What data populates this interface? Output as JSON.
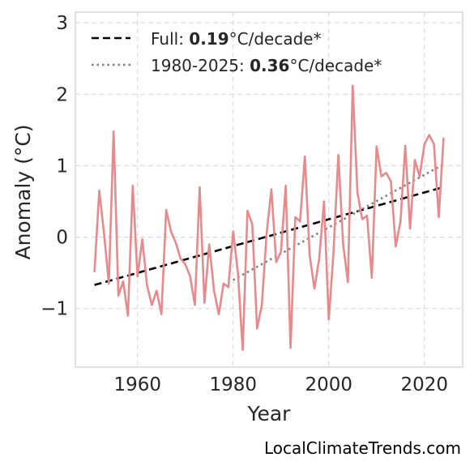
{
  "chart_data": {
    "type": "line",
    "xlabel": "Year",
    "ylabel": "Anomaly (°C)",
    "xlim": [
      1947,
      2028
    ],
    "ylim": [
      -1.82,
      3.15
    ],
    "xticks": [
      1960,
      1980,
      2000,
      2020
    ],
    "yticks": [
      -1,
      0,
      1,
      2,
      3
    ],
    "ytick_labels": [
      "−1",
      "0",
      "1",
      "2",
      "3"
    ],
    "grid": true,
    "legend_position": "top-left",
    "series": [
      {
        "color": "#e8898c",
        "x": [
          1951,
          1952,
          1953,
          1954,
          1955,
          1956,
          1957,
          1958,
          1959,
          1960,
          1961,
          1962,
          1963,
          1964,
          1965,
          1966,
          1967,
          1968,
          1969,
          1970,
          1971,
          1972,
          1973,
          1974,
          1975,
          1976,
          1977,
          1978,
          1979,
          1980,
          1981,
          1982,
          1983,
          1984,
          1985,
          1986,
          1987,
          1988,
          1989,
          1990,
          1991,
          1992,
          1993,
          1994,
          1995,
          1996,
          1997,
          1998,
          1999,
          2000,
          2001,
          2002,
          2003,
          2004,
          2005,
          2006,
          2007,
          2008,
          2009,
          2010,
          2011,
          2012,
          2013,
          2014,
          2015,
          2016,
          2017,
          2018,
          2019,
          2020,
          2021,
          2022,
          2023,
          2024
        ],
        "values": [
          -0.48,
          0.65,
          0.05,
          -0.65,
          1.48,
          -0.82,
          -0.62,
          -1.1,
          0.72,
          -0.55,
          -0.03,
          -0.68,
          -0.95,
          -0.75,
          -1.08,
          0.38,
          0.08,
          -0.08,
          -0.3,
          -0.38,
          -0.55,
          -0.95,
          0.7,
          -0.92,
          -0.1,
          -0.75,
          -1.08,
          -0.65,
          -0.7,
          0.08,
          -0.5,
          -1.58,
          0.37,
          0.18,
          -1.28,
          -0.95,
          0.05,
          0.67,
          -0.35,
          -0.2,
          0.72,
          -1.55,
          0.28,
          0.22,
          1.13,
          -0.25,
          -0.72,
          -0.3,
          0.5,
          -1.15,
          -0.2,
          1.15,
          -0.1,
          -0.63,
          2.12,
          0.62,
          0.25,
          0.3,
          -0.57,
          1.27,
          0.85,
          0.9,
          0.78,
          -0.13,
          0.22,
          1.28,
          0.12,
          1.08,
          0.85,
          1.3,
          1.43,
          1.3,
          0.28,
          1.38
        ]
      }
    ],
    "trend_lines": [
      {
        "label_prefix": "Full: ",
        "label_value": "0.19",
        "label_suffix": "°C/decade*",
        "style": "dashed",
        "color": "#000000",
        "x": [
          1951,
          2024
        ],
        "y": [
          -0.67,
          0.7
        ]
      },
      {
        "label_prefix": "1980-2025: ",
        "label_value": "0.36",
        "label_suffix": "°C/decade*",
        "style": "dotted",
        "color": "#808080",
        "x": [
          1980,
          2024
        ],
        "y": [
          -0.6,
          1.02
        ]
      }
    ]
  },
  "watermark": "LocalClimateTrends.com"
}
